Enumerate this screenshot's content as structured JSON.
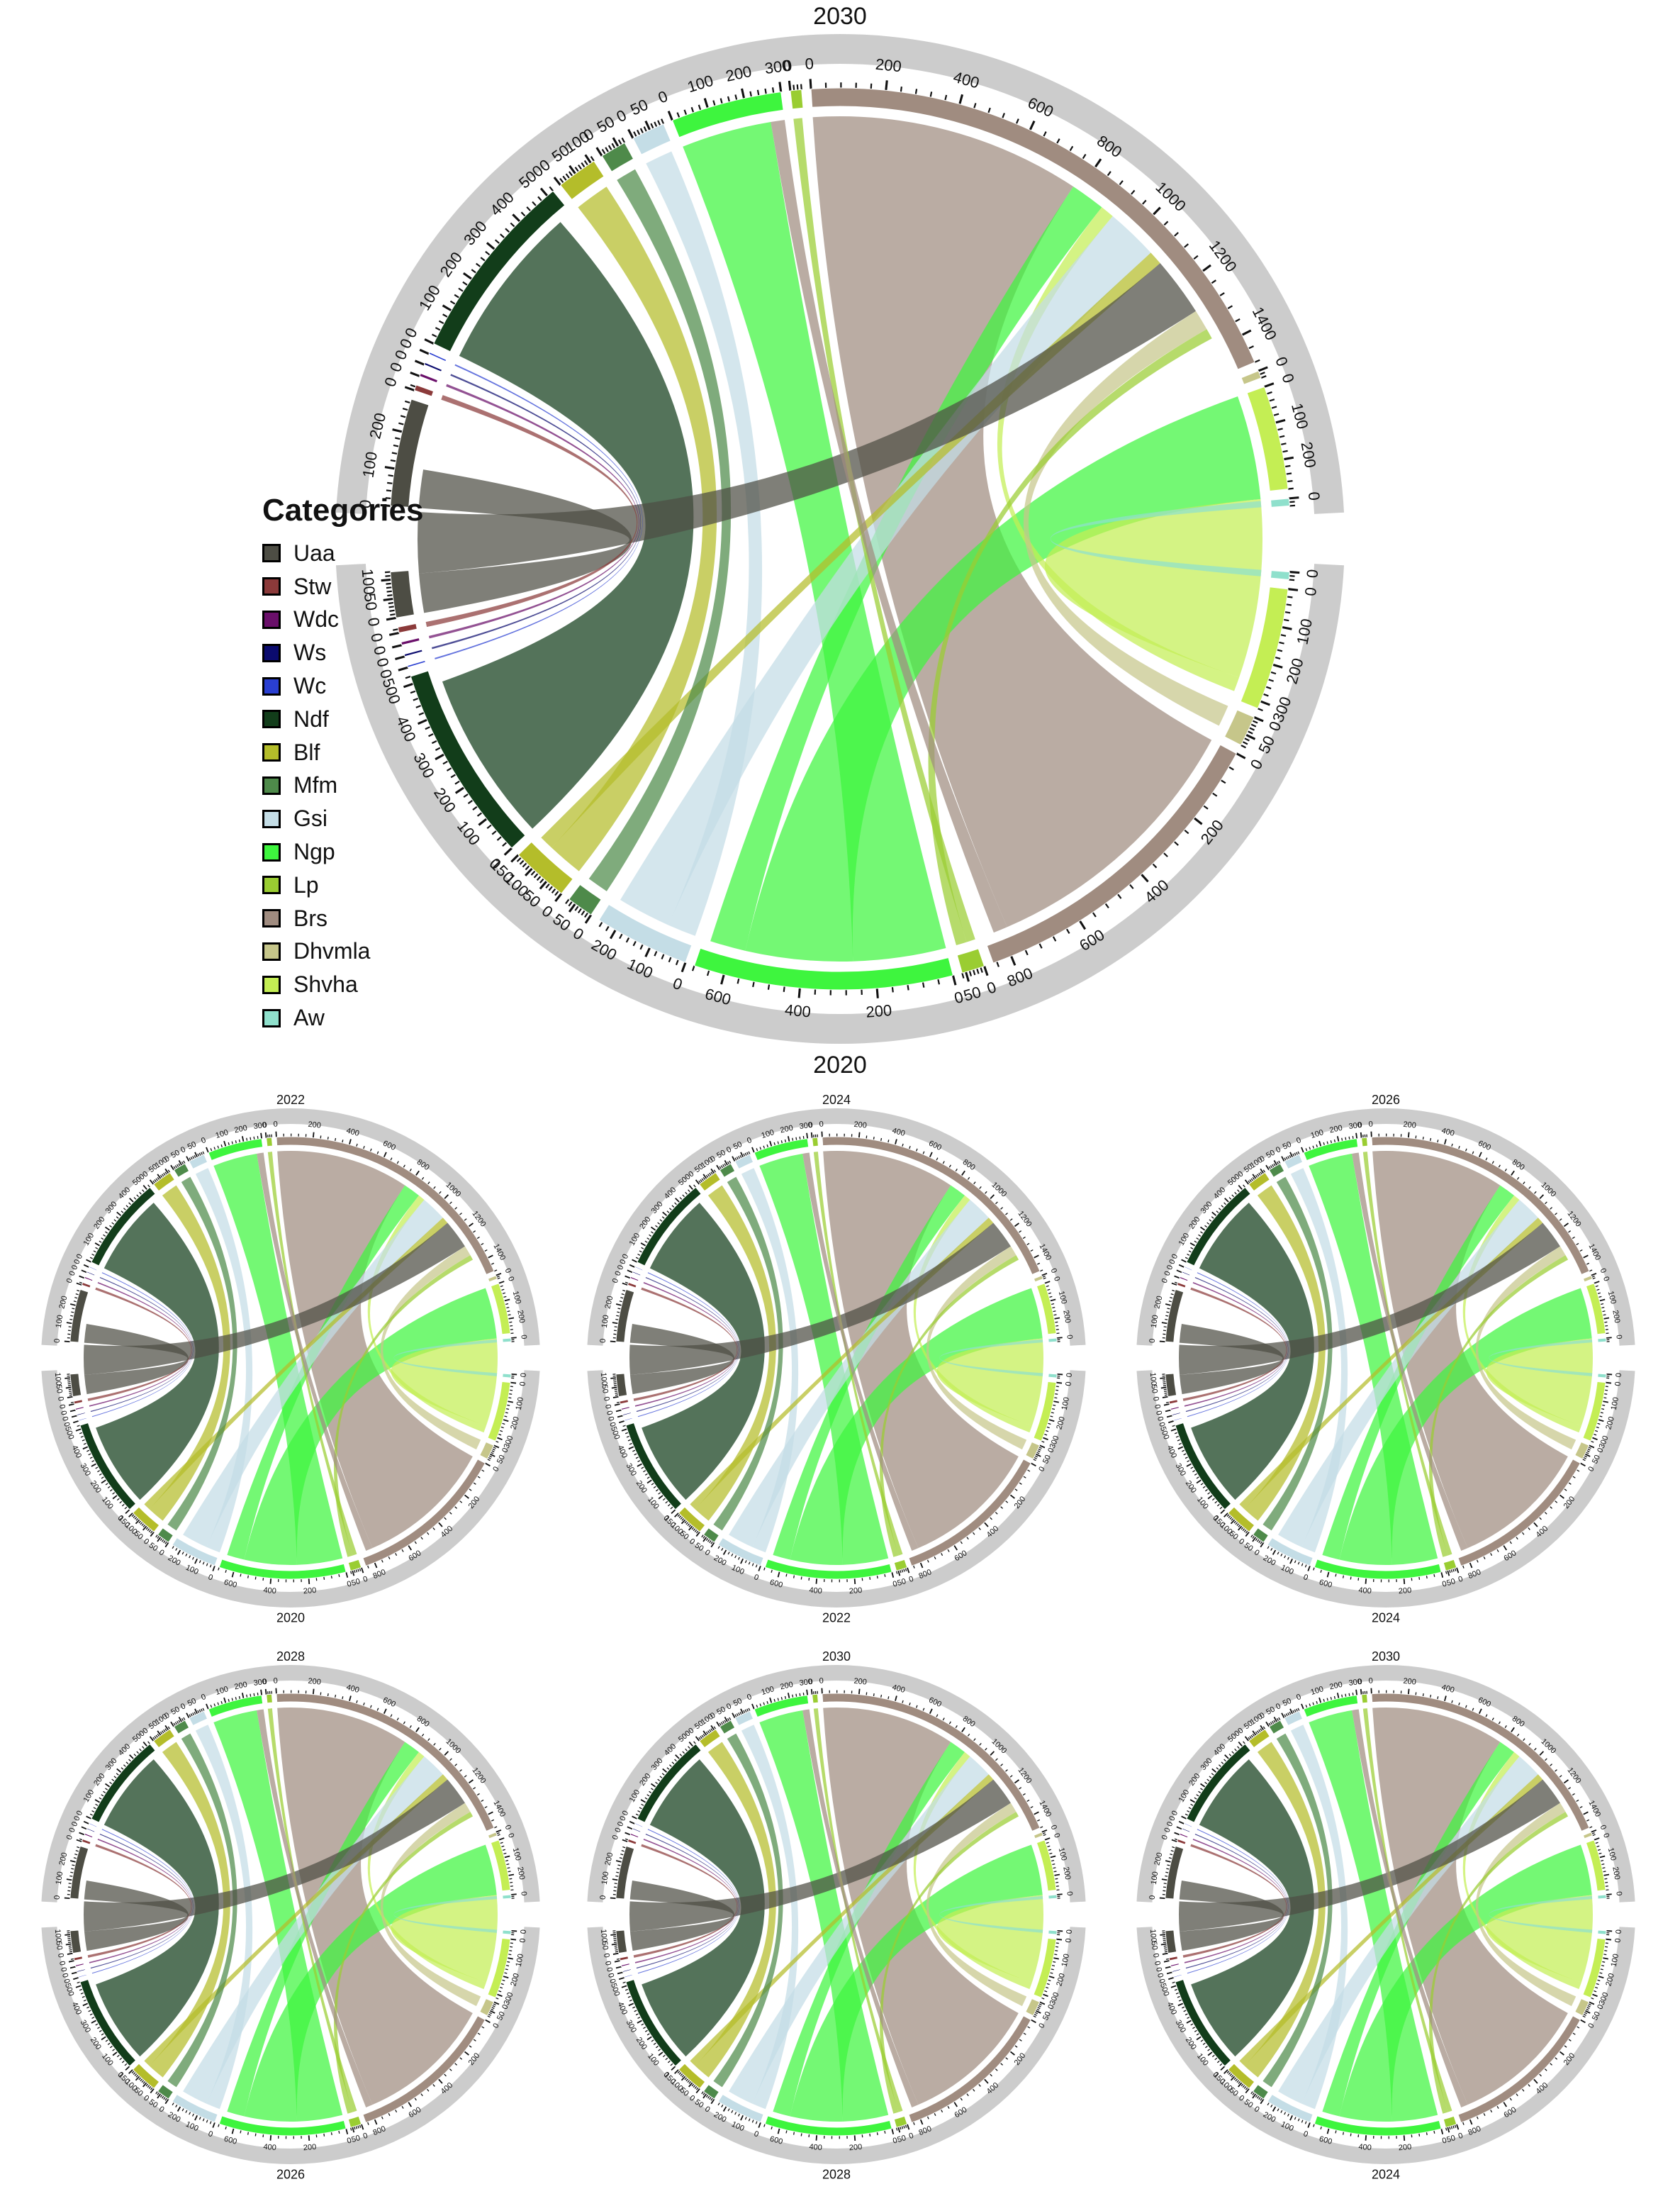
{
  "legend": {
    "title": "Categories",
    "items": [
      {
        "name": "Uaa",
        "color": "#4d4d44"
      },
      {
        "name": "Stw",
        "color": "#8b3a3a"
      },
      {
        "name": "Wdc",
        "color": "#6a0f6a"
      },
      {
        "name": "Ws",
        "color": "#0b0b6e"
      },
      {
        "name": "Wc",
        "color": "#2a3fd1"
      },
      {
        "name": "Ndf",
        "color": "#123d1a"
      },
      {
        "name": "Blf",
        "color": "#b4bd2a"
      },
      {
        "name": "Mfm",
        "color": "#4e8a4a"
      },
      {
        "name": "Gsi",
        "color": "#c4dde6"
      },
      {
        "name": "Ngp",
        "color": "#3ef53e"
      },
      {
        "name": "Lp",
        "color": "#9acd32"
      },
      {
        "name": "Brs",
        "color": "#a08c80"
      },
      {
        "name": "Dhvmla",
        "color": "#c6c68a"
      },
      {
        "name": "Shvha",
        "color": "#c4ee54"
      },
      {
        "name": "Aw",
        "color": "#8fe0cc"
      }
    ]
  },
  "chart_data": [
    {
      "type": "chord",
      "panel": "main",
      "top_label": "2030",
      "bottom_label": "2020",
      "top_sectors": [
        {
          "cat": "Uaa",
          "value": 290
        },
        {
          "cat": "Stw",
          "value": 15
        },
        {
          "cat": "Wdc",
          "value": 8
        },
        {
          "cat": "Ws",
          "value": 6
        },
        {
          "cat": "Wc",
          "value": 5
        },
        {
          "cat": "Ndf",
          "value": 520
        },
        {
          "cat": "Blf",
          "value": 110
        },
        {
          "cat": "Mfm",
          "value": 70
        },
        {
          "cat": "Gsi",
          "value": 90
        },
        {
          "cat": "Ngp",
          "value": 300
        },
        {
          "cat": "Lp",
          "value": 30
        },
        {
          "cat": "Brs",
          "value": 1480
        },
        {
          "cat": "Dhvmla",
          "value": 20
        },
        {
          "cat": "Shvha",
          "value": 280
        },
        {
          "cat": "Aw",
          "value": 20
        }
      ],
      "bottom_sectors": [
        {
          "cat": "Uaa",
          "value": 120
        },
        {
          "cat": "Stw",
          "value": 15
        },
        {
          "cat": "Wdc",
          "value": 8
        },
        {
          "cat": "Ws",
          "value": 6
        },
        {
          "cat": "Wc",
          "value": 5
        },
        {
          "cat": "Ndf",
          "value": 520
        },
        {
          "cat": "Blf",
          "value": 150
        },
        {
          "cat": "Mfm",
          "value": 70
        },
        {
          "cat": "Gsi",
          "value": 250
        },
        {
          "cat": "Ngp",
          "value": 680
        },
        {
          "cat": "Lp",
          "value": 60
        },
        {
          "cat": "Brs",
          "value": 850
        },
        {
          "cat": "Dhvmla",
          "value": 80
        },
        {
          "cat": "Shvha",
          "value": 320
        },
        {
          "cat": "Aw",
          "value": 20
        }
      ],
      "flows": [
        {
          "from": "Brs",
          "to": "Brs",
          "value": 780
        },
        {
          "from": "Ngp",
          "to": "Ngp",
          "value": 260
        },
        {
          "from": "Ngp",
          "to": "Shvha",
          "value": 300
        },
        {
          "from": "Ngp",
          "to": "Brs",
          "value": 100
        },
        {
          "from": "Ndf",
          "to": "Ndf",
          "value": 480
        },
        {
          "from": "Shvha",
          "to": "Shvha",
          "value": 260
        },
        {
          "from": "Shvha",
          "to": "Brs",
          "value": 40
        },
        {
          "from": "Gsi",
          "to": "Gsi",
          "value": 80
        },
        {
          "from": "Gsi",
          "to": "Brs",
          "value": 150
        },
        {
          "from": "Blf",
          "to": "Blf",
          "value": 100
        },
        {
          "from": "Blf",
          "to": "Brs",
          "value": 40
        },
        {
          "from": "Mfm",
          "to": "Mfm",
          "value": 60
        },
        {
          "from": "Uaa",
          "to": "Uaa",
          "value": 110
        },
        {
          "from": "Uaa",
          "to": "Brs",
          "value": 170
        },
        {
          "from": "Dhvmla",
          "to": "Brs",
          "value": 60
        },
        {
          "from": "Lp",
          "to": "Lp",
          "value": 25
        },
        {
          "from": "Lp",
          "to": "Brs",
          "value": 30
        },
        {
          "from": "Brs",
          "to": "Ngp",
          "value": 40
        },
        {
          "from": "Aw",
          "to": "Aw",
          "value": 18
        },
        {
          "from": "Stw",
          "to": "Stw",
          "value": 14
        },
        {
          "from": "Wdc",
          "to": "Wdc",
          "value": 7
        },
        {
          "from": "Ws",
          "to": "Ws",
          "value": 5
        },
        {
          "from": "Wc",
          "to": "Wc",
          "value": 4
        }
      ]
    },
    {
      "type": "chord",
      "panel": "small-1",
      "top_label": "2022",
      "bottom_label": "2020"
    },
    {
      "type": "chord",
      "panel": "small-2",
      "top_label": "2024",
      "bottom_label": "2022"
    },
    {
      "type": "chord",
      "panel": "small-3",
      "top_label": "2026",
      "bottom_label": "2024"
    },
    {
      "type": "chord",
      "panel": "small-4",
      "top_label": "2028",
      "bottom_label": "2026"
    },
    {
      "type": "chord",
      "panel": "small-5",
      "top_label": "2030",
      "bottom_label": "2028"
    },
    {
      "type": "chord",
      "panel": "small-6",
      "top_label": "2030",
      "bottom_label": "2024"
    }
  ]
}
